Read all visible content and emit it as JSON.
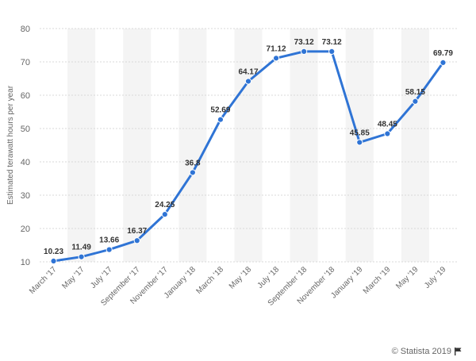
{
  "chart_data": {
    "type": "line",
    "categories": [
      "March '17",
      "May '17",
      "July '17",
      "September '17",
      "November '17",
      "January '18",
      "March '18",
      "May '18",
      "July '18",
      "September '18",
      "November '18",
      "January '19",
      "March '19",
      "May '19",
      "July '19"
    ],
    "values": [
      10.23,
      11.49,
      13.66,
      16.37,
      24.25,
      36.8,
      52.69,
      64.17,
      71.12,
      73.12,
      73.12,
      45.85,
      48.45,
      58.15,
      69.79
    ],
    "data_labels": [
      "10.23",
      "11.49",
      "13.66",
      "16.37",
      "24.25",
      "36.8",
      "52.69",
      "64.17",
      "71.12",
      "73.12",
      "73.12",
      "45.85",
      "48.45",
      "58.15",
      "69.79"
    ],
    "ylabel": "Estimated terawatt hours per year",
    "ylim": [
      10,
      80
    ],
    "yticks": [
      10,
      20,
      30,
      40,
      50,
      60,
      70,
      80
    ],
    "grid": true,
    "line_color": "#2f74d5",
    "band_color": "#f4f4f4"
  },
  "footer": {
    "copyright": "© Statista 2019",
    "flag_icon": "flag-icon"
  }
}
